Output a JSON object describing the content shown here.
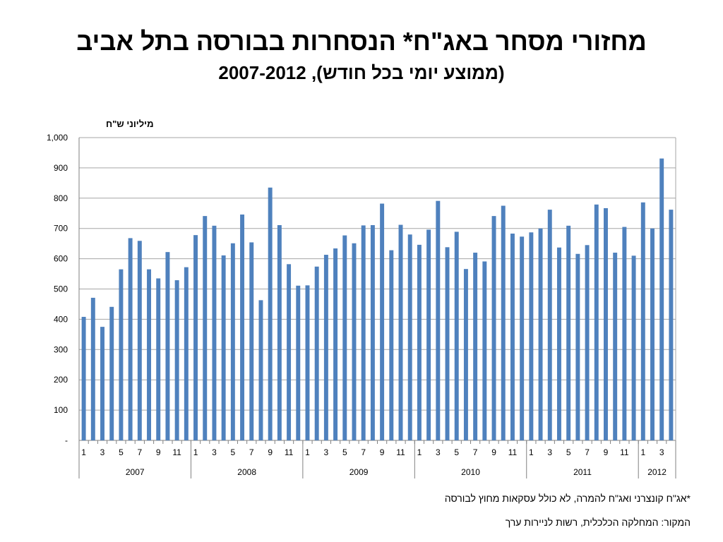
{
  "title": "מחזורי מסחר באג\"ח* הנסחרות בבורסה בתל אביב",
  "subtitle": "(ממוצע יומי בכל חודש), 2007-2012",
  "footnote": "*אג\"ח קונצרני ואג\"ח להמרה, לא כולל עסקאות מחוץ לבורסה",
  "source": "המקור: המחלקה הכלכלית, רשות לניירות ערך",
  "colors": {
    "bar": "#4f81bd",
    "grid": "#a6a6a6",
    "axis": "#808080"
  },
  "chart_data": {
    "type": "bar",
    "ylabel": "מיליוני ש\"ח",
    "ylim": [
      0,
      1000
    ],
    "yticks": [
      0,
      100,
      200,
      300,
      400,
      500,
      600,
      700,
      800,
      900,
      1000
    ],
    "ytick_labels": [
      "-",
      "100",
      "200",
      "300",
      "400",
      "500",
      "600",
      "700",
      "800",
      "900",
      "1,000"
    ],
    "grid": true,
    "years": [
      {
        "label": "2007",
        "months": 12
      },
      {
        "label": "2008",
        "months": 12
      },
      {
        "label": "2009",
        "months": 12
      },
      {
        "label": "2010",
        "months": 12
      },
      {
        "label": "2011",
        "months": 12
      },
      {
        "label": "2012",
        "months": 4
      }
    ],
    "month_labels": [
      "1",
      "",
      "3",
      "",
      "5",
      "",
      "7",
      "",
      "9",
      "",
      "11",
      ""
    ],
    "values": [
      408,
      471,
      375,
      441,
      565,
      668,
      659,
      565,
      535,
      622,
      529,
      572,
      678,
      741,
      709,
      611,
      651,
      746,
      654,
      463,
      835,
      711,
      582,
      511,
      512,
      574,
      613,
      634,
      677,
      651,
      710,
      711,
      782,
      628,
      712,
      680,
      646,
      696,
      791,
      638,
      689,
      566,
      620,
      591,
      741,
      775,
      683,
      673,
      687,
      700,
      762,
      637,
      709,
      616,
      645,
      779,
      767,
      620,
      705,
      610,
      786,
      700,
      931,
      762
    ]
  }
}
